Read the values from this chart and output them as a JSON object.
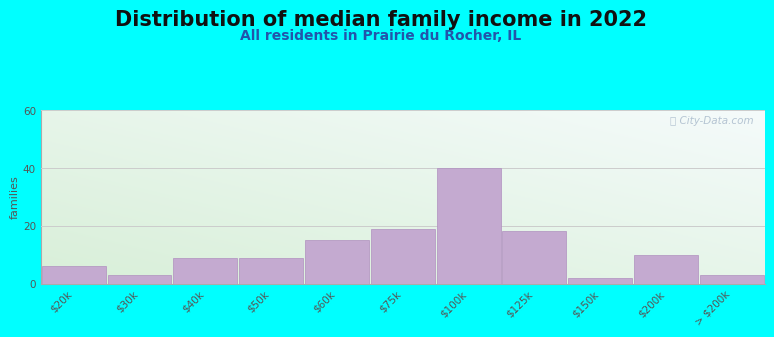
{
  "title": "Distribution of median family income in 2022",
  "subtitle": "All residents in Prairie du Rocher, IL",
  "ylabel": "families",
  "categories": [
    "$20k",
    "$30k",
    "$40k",
    "$50k",
    "$60k",
    "$75k",
    "$100k",
    "$125k",
    "$150k",
    "$200k",
    "> $200k"
  ],
  "values": [
    6,
    3,
    9,
    9,
    15,
    19,
    40,
    18,
    2,
    10,
    3
  ],
  "bar_color": "#c4aad0",
  "bar_edge_color": "#b090bf",
  "ylim": [
    0,
    60
  ],
  "yticks": [
    0,
    20,
    40,
    60
  ],
  "background_color": "#00ffff",
  "grad_color_topleft": "#d8efd8",
  "grad_color_bottomright": "#f5fbfb",
  "grid_color": "#cccccc",
  "title_fontsize": 15,
  "subtitle_fontsize": 10,
  "axis_label_fontsize": 8,
  "tick_fontsize": 7.5,
  "watermark_text": "ⓘ City-Data.com"
}
